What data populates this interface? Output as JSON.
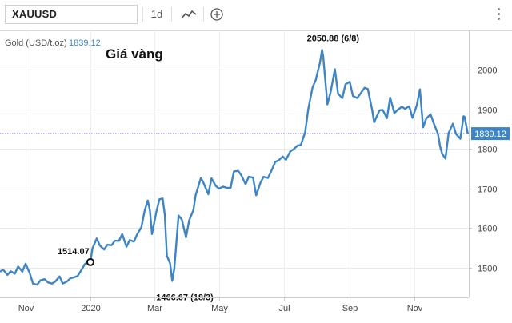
{
  "toolbar": {
    "symbol": "XAUUSD",
    "interval": "1d"
  },
  "chart_data": {
    "type": "line",
    "title": "Giá vàng",
    "instrument_label": "Gold (USD/t.oz)",
    "last_value_label": "1839.12",
    "yticks": [
      1500,
      1600,
      1700,
      1800,
      1900,
      2000
    ],
    "ylim": [
      1425,
      2100
    ],
    "xlim": [
      "2019-10-08",
      "2020-12-22"
    ],
    "xticks": [
      {
        "label": "Nov",
        "date": "2019-11-01"
      },
      {
        "label": "2020",
        "date": "2020-01-01"
      },
      {
        "label": "Mar",
        "date": "2020-03-01"
      },
      {
        "label": "May",
        "date": "2020-05-01"
      },
      {
        "label": "Jul",
        "date": "2020-07-01"
      },
      {
        "label": "Sep",
        "date": "2020-09-01"
      },
      {
        "label": "Nov",
        "date": "2020-11-01"
      }
    ],
    "annotations": [
      {
        "label": "1514.07",
        "date": "2020-01-01",
        "value": 1514.07,
        "marker": true
      },
      {
        "label": "1466.67 (18/3)",
        "date": "2020-03-18",
        "value": 1466.67
      },
      {
        "label": "2050.88 (6/8)",
        "date": "2020-08-06",
        "value": 2050.88
      }
    ],
    "last_value": 1839.12,
    "series": [
      {
        "color": "#3d85c6",
        "points": [
          [
            "2019-10-08",
            1490
          ],
          [
            "2019-10-11",
            1495
          ],
          [
            "2019-10-15",
            1482
          ],
          [
            "2019-10-18",
            1491
          ],
          [
            "2019-10-22",
            1485
          ],
          [
            "2019-10-25",
            1503
          ],
          [
            "2019-10-29",
            1490
          ],
          [
            "2019-11-01",
            1510
          ],
          [
            "2019-11-05",
            1486
          ],
          [
            "2019-11-08",
            1460
          ],
          [
            "2019-11-12",
            1457
          ],
          [
            "2019-11-15",
            1468
          ],
          [
            "2019-11-19",
            1471
          ],
          [
            "2019-11-22",
            1463
          ],
          [
            "2019-11-26",
            1460
          ],
          [
            "2019-11-29",
            1465
          ],
          [
            "2019-12-03",
            1478
          ],
          [
            "2019-12-06",
            1460
          ],
          [
            "2019-12-10",
            1465
          ],
          [
            "2019-12-13",
            1473
          ],
          [
            "2019-12-17",
            1476
          ],
          [
            "2019-12-20",
            1479
          ],
          [
            "2019-12-24",
            1496
          ],
          [
            "2019-12-27",
            1510
          ],
          [
            "2020-01-01",
            1514.07
          ],
          [
            "2020-01-03",
            1549
          ],
          [
            "2020-01-07",
            1574
          ],
          [
            "2020-01-10",
            1556
          ],
          [
            "2020-01-14",
            1546
          ],
          [
            "2020-01-17",
            1558
          ],
          [
            "2020-01-21",
            1557
          ],
          [
            "2020-01-24",
            1568
          ],
          [
            "2020-01-28",
            1568
          ],
          [
            "2020-01-31",
            1585
          ],
          [
            "2020-02-04",
            1553
          ],
          [
            "2020-02-07",
            1570
          ],
          [
            "2020-02-11",
            1566
          ],
          [
            "2020-02-14",
            1584
          ],
          [
            "2020-02-18",
            1602
          ],
          [
            "2020-02-21",
            1643
          ],
          [
            "2020-02-24",
            1670
          ],
          [
            "2020-02-26",
            1645
          ],
          [
            "2020-02-28",
            1585
          ],
          [
            "2020-03-03",
            1640
          ],
          [
            "2020-03-06",
            1673
          ],
          [
            "2020-03-09",
            1675
          ],
          [
            "2020-03-11",
            1634
          ],
          [
            "2020-03-13",
            1530
          ],
          [
            "2020-03-16",
            1511
          ],
          [
            "2020-03-18",
            1466.67
          ],
          [
            "2020-03-20",
            1498
          ],
          [
            "2020-03-24",
            1632
          ],
          [
            "2020-03-27",
            1622
          ],
          [
            "2020-03-31",
            1577
          ],
          [
            "2020-04-03",
            1620
          ],
          [
            "2020-04-07",
            1646
          ],
          [
            "2020-04-09",
            1683
          ],
          [
            "2020-04-14",
            1727
          ],
          [
            "2020-04-16",
            1717
          ],
          [
            "2020-04-21",
            1686
          ],
          [
            "2020-04-24",
            1726
          ],
          [
            "2020-04-28",
            1707
          ],
          [
            "2020-05-01",
            1700
          ],
          [
            "2020-05-05",
            1705
          ],
          [
            "2020-05-08",
            1702
          ],
          [
            "2020-05-12",
            1702
          ],
          [
            "2020-05-15",
            1743
          ],
          [
            "2020-05-19",
            1745
          ],
          [
            "2020-05-22",
            1734
          ],
          [
            "2020-05-26",
            1711
          ],
          [
            "2020-05-29",
            1730
          ],
          [
            "2020-06-02",
            1728
          ],
          [
            "2020-06-05",
            1683
          ],
          [
            "2020-06-09",
            1715
          ],
          [
            "2020-06-12",
            1730
          ],
          [
            "2020-06-16",
            1727
          ],
          [
            "2020-06-19",
            1743
          ],
          [
            "2020-06-23",
            1768
          ],
          [
            "2020-06-26",
            1771
          ],
          [
            "2020-06-30",
            1781
          ],
          [
            "2020-07-03",
            1773
          ],
          [
            "2020-07-07",
            1794
          ],
          [
            "2020-07-10",
            1799
          ],
          [
            "2020-07-14",
            1809
          ],
          [
            "2020-07-17",
            1810
          ],
          [
            "2020-07-21",
            1842
          ],
          [
            "2020-07-24",
            1902
          ],
          [
            "2020-07-28",
            1956
          ],
          [
            "2020-07-31",
            1975
          ],
          [
            "2020-08-04",
            2019
          ],
          [
            "2020-08-06",
            2050.88
          ],
          [
            "2020-08-07",
            2034
          ],
          [
            "2020-08-11",
            1913
          ],
          [
            "2020-08-14",
            1944
          ],
          [
            "2020-08-18",
            2002
          ],
          [
            "2020-08-21",
            1940
          ],
          [
            "2020-08-25",
            1929
          ],
          [
            "2020-08-28",
            1964
          ],
          [
            "2020-09-01",
            1970
          ],
          [
            "2020-09-04",
            1934
          ],
          [
            "2020-09-08",
            1929
          ],
          [
            "2020-09-11",
            1940
          ],
          [
            "2020-09-15",
            1955
          ],
          [
            "2020-09-18",
            1952
          ],
          [
            "2020-09-22",
            1900
          ],
          [
            "2020-09-24",
            1868
          ],
          [
            "2020-09-29",
            1898
          ],
          [
            "2020-10-02",
            1899
          ],
          [
            "2020-10-06",
            1878
          ],
          [
            "2020-10-09",
            1930
          ],
          [
            "2020-10-13",
            1891
          ],
          [
            "2020-10-16",
            1899
          ],
          [
            "2020-10-20",
            1907
          ],
          [
            "2020-10-23",
            1902
          ],
          [
            "2020-10-27",
            1908
          ],
          [
            "2020-10-30",
            1879
          ],
          [
            "2020-11-03",
            1910
          ],
          [
            "2020-11-06",
            1951
          ],
          [
            "2020-11-09",
            1855
          ],
          [
            "2020-11-12",
            1877
          ],
          [
            "2020-11-16",
            1888
          ],
          [
            "2020-11-19",
            1866
          ],
          [
            "2020-11-23",
            1838
          ],
          [
            "2020-11-25",
            1807
          ],
          [
            "2020-11-27",
            1788
          ],
          [
            "2020-11-30",
            1776
          ],
          [
            "2020-12-03",
            1841
          ],
          [
            "2020-12-07",
            1864
          ],
          [
            "2020-12-10",
            1838
          ],
          [
            "2020-12-14",
            1826
          ],
          [
            "2020-12-16",
            1862
          ],
          [
            "2020-12-17",
            1883
          ],
          [
            "2020-12-18",
            1882
          ],
          [
            "2020-12-21",
            1839.12
          ]
        ]
      }
    ]
  }
}
